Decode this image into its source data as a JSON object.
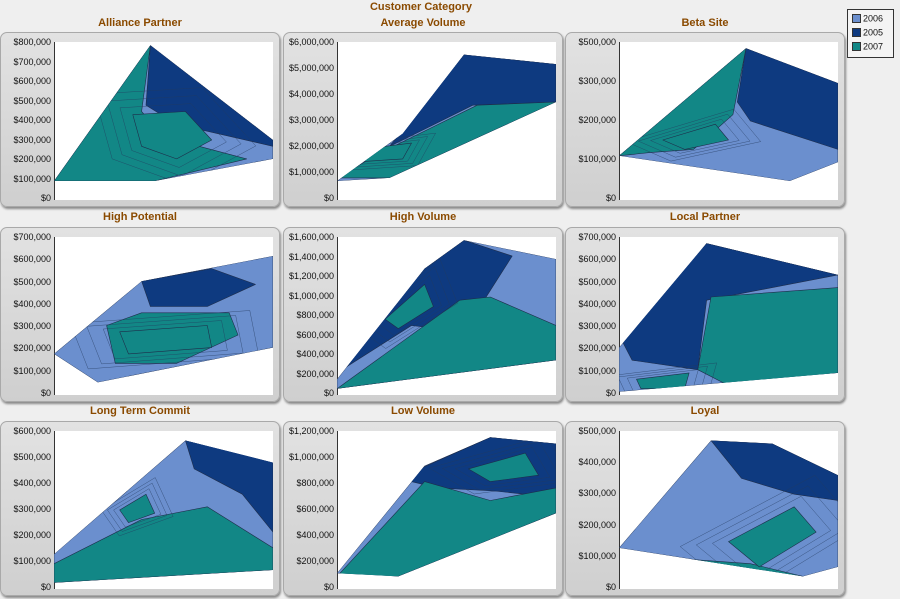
{
  "suptitle": "Customer Category",
  "legend": [
    {
      "label": "2006",
      "color": "#6b8fce"
    },
    {
      "label": "2005",
      "color": "#0e3a80"
    },
    {
      "label": "2007",
      "color": "#128786"
    }
  ],
  "chart_data": [
    {
      "type": "contour",
      "title": "Alliance Partner",
      "yticks": [
        "$800,000",
        "$700,000",
        "$600,000",
        "$500,000",
        "$400,000",
        "$300,000",
        "$200,000",
        "$100,000",
        "$0"
      ],
      "ylim": [
        0,
        800000
      ],
      "legend": [
        "2006",
        "2005",
        "2007"
      ]
    },
    {
      "type": "contour",
      "title": "Average Volume",
      "yticks": [
        "$6,000,000",
        "$5,000,000",
        "$4,000,000",
        "$3,000,000",
        "$2,000,000",
        "$1,000,000",
        "$0"
      ],
      "ylim": [
        0,
        6000000
      ],
      "legend": [
        "2006",
        "2005",
        "2007"
      ]
    },
    {
      "type": "contour",
      "title": "Beta Site",
      "yticks": [
        "$500,000",
        "$300,000",
        "$200,000",
        "$100,000",
        "$0"
      ],
      "ylim": [
        0,
        500000
      ],
      "legend": [
        "2006",
        "2005",
        "2007"
      ]
    },
    {
      "type": "contour",
      "title": "High Potential",
      "yticks": [
        "$700,000",
        "$600,000",
        "$500,000",
        "$400,000",
        "$300,000",
        "$200,000",
        "$100,000",
        "$0"
      ],
      "ylim": [
        0,
        700000
      ],
      "legend": [
        "2006",
        "2005",
        "2007"
      ]
    },
    {
      "type": "contour",
      "title": "High Volume",
      "yticks": [
        "$1,600,000",
        "$1,400,000",
        "$1,200,000",
        "$1,000,000",
        "$800,000",
        "$600,000",
        "$400,000",
        "$200,000",
        "$0"
      ],
      "ylim": [
        0,
        1600000
      ],
      "legend": [
        "2006",
        "2005",
        "2007"
      ]
    },
    {
      "type": "contour",
      "title": "Local Partner",
      "yticks": [
        "$700,000",
        "$600,000",
        "$500,000",
        "$400,000",
        "$300,000",
        "$200,000",
        "$100,000",
        "$0"
      ],
      "ylim": [
        0,
        700000
      ],
      "legend": [
        "2006",
        "2005",
        "2007"
      ]
    },
    {
      "type": "contour",
      "title": "Long Term Commit",
      "yticks": [
        "$600,000",
        "$500,000",
        "$400,000",
        "$300,000",
        "$200,000",
        "$100,000",
        "$0"
      ],
      "ylim": [
        0,
        600000
      ],
      "legend": [
        "2006",
        "2005",
        "2007"
      ]
    },
    {
      "type": "contour",
      "title": "Low Volume",
      "yticks": [
        "$1,200,000",
        "$1,000,000",
        "$800,000",
        "$600,000",
        "$400,000",
        "$200,000",
        "$0"
      ],
      "ylim": [
        0,
        1200000
      ],
      "legend": [
        "2006",
        "2005",
        "2007"
      ]
    },
    {
      "type": "contour",
      "title": "Loyal",
      "yticks": [
        "$500,000",
        "$400,000",
        "$300,000",
        "$200,000",
        "$100,000",
        "$0"
      ],
      "ylim": [
        0,
        500000
      ],
      "legend": [
        "2006",
        "2005",
        "2007"
      ]
    }
  ]
}
